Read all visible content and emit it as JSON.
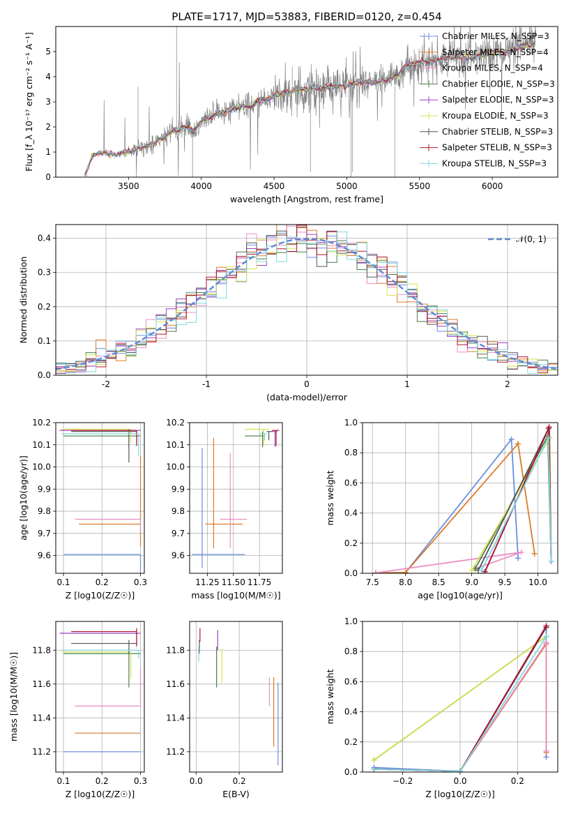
{
  "title": "PLATE=1717, MJD=53883, FIBERID=0120, z=0.454",
  "colors": {
    "Chabrier MILES": "#6a8fdc",
    "Salpeter MILES": "#dc7a2a",
    "Kroupa MILES": "#e98ec6",
    "Chabrier ELODIE": "#4a7a4a",
    "Salpeter ELODIE": "#9b3fc2",
    "Kroupa ELODIE": "#d4e34f",
    "Chabrier STELIB": "#555555",
    "Salpeter STELIB": "#b1132a",
    "Kroupa STELIB": "#7fd6df",
    "normal": "#5f8ad6",
    "data": "#808080"
  },
  "chart_data": [
    {
      "id": "spectrum",
      "type": "line",
      "title": "PLATE=1717, MJD=53883, FIBERID=0120, z=0.454",
      "xlabel": "wavelength [Angstrom, rest frame]",
      "ylabel": "Flux [f_λ 10⁻¹⁷ erg cm⁻² s⁻¹ A⁻¹]",
      "xlim": [
        3000,
        6450
      ],
      "ylim": [
        0,
        6
      ],
      "xticks": [
        3500,
        4000,
        4500,
        5000,
        5500,
        6000
      ],
      "yticks": [
        0,
        1,
        2,
        3,
        4,
        5
      ],
      "legend_position": "upper-right",
      "legend": [
        "Chabrier MILES, N_SSP=3",
        "Salpeter MILES, N_SSP=4",
        "Kroupa MILES, N_SSP=4",
        "Chabrier ELODIE, N_SSP=3",
        "Salpeter ELODIE, N_SSP=3",
        "Kroupa ELODIE, N_SSP=3",
        "Chabrier STELIB, N_SSP=3",
        "Salpeter STELIB, N_SSP=3",
        "Kroupa STELIB, N_SSP=3"
      ],
      "continuum": {
        "x": [
          3200,
          3250,
          3300,
          3350,
          3400,
          3450,
          3500,
          3550,
          3600,
          3650,
          3700,
          3750,
          3800,
          3850,
          3900,
          3950,
          4000,
          4050,
          4100,
          4150,
          4200,
          4250,
          4300,
          4350,
          4400,
          4450,
          4500,
          4550,
          4600,
          4650,
          4700,
          4750,
          4800,
          4850,
          4900,
          4950,
          5000,
          5050,
          5100,
          5150,
          5200,
          5250,
          5300,
          5350,
          5400,
          5450,
          5500,
          5550,
          5600,
          5650,
          5700,
          5750,
          5800,
          5850,
          5900,
          5950,
          6000,
          6050,
          6100,
          6150,
          6200,
          6250,
          6300
        ],
        "y": [
          0.1,
          0.85,
          0.95,
          0.95,
          0.9,
          0.95,
          1.0,
          1.1,
          1.2,
          1.3,
          1.45,
          1.6,
          1.85,
          1.9,
          2.0,
          1.85,
          2.25,
          2.35,
          2.55,
          2.6,
          2.7,
          2.75,
          2.85,
          2.85,
          3.05,
          3.1,
          3.25,
          3.35,
          3.35,
          3.45,
          3.5,
          3.55,
          3.55,
          3.6,
          3.6,
          3.65,
          3.65,
          3.75,
          3.75,
          3.8,
          3.75,
          3.85,
          3.95,
          4.05,
          4.4,
          4.5,
          4.55,
          4.6,
          4.6,
          4.7,
          4.75,
          4.75,
          4.8,
          4.75,
          4.85,
          4.9,
          4.95,
          5.0,
          5.0,
          5.1,
          5.2,
          5.25,
          5.3
        ]
      }
    },
    {
      "id": "residuals",
      "type": "line",
      "xlabel": "(data-model)/error",
      "ylabel": "Normed distribution",
      "xlim": [
        -2.5,
        2.5
      ],
      "ylim": [
        0,
        0.44
      ],
      "xticks": [
        -2,
        -1,
        0,
        1,
        2
      ],
      "yticks": [
        0.0,
        0.1,
        0.2,
        0.3,
        0.4
      ],
      "legend": [
        "𝒩(0, 1)"
      ],
      "legend_position": "upper-right",
      "bin_width": 0.1,
      "series_note": "nine step histograms following the normal curve with scatter"
    },
    {
      "id": "age-vs-Z",
      "type": "scatter",
      "xlabel": "Z [log10(Z/Z☉)]",
      "ylabel": "age  [log10(age/yr)]",
      "xlim": [
        0.08,
        0.31
      ],
      "ylim": [
        9.52,
        10.2
      ],
      "xticks": [
        0.1,
        0.2,
        0.3
      ],
      "yticks": [
        9.6,
        9.7,
        9.8,
        9.9,
        10.0,
        10.1,
        10.2
      ],
      "points": [
        {
          "model": "Chabrier MILES",
          "x": 0.3,
          "y": 9.605,
          "xerr": [
            0.2,
            0.0
          ],
          "yerr": [
            0.08,
            0.0
          ]
        },
        {
          "model": "Salpeter MILES",
          "x": 0.3,
          "y": 9.742,
          "xerr": [
            0.16,
            0.0
          ],
          "yerr": [
            0.1,
            0.31
          ]
        },
        {
          "model": "Kroupa MILES",
          "x": 0.3,
          "y": 9.764,
          "xerr": [
            0.17,
            0.0
          ],
          "yerr": [
            0.05,
            0.0
          ]
        },
        {
          "model": "Chabrier ELODIE",
          "x": 0.27,
          "y": 10.14,
          "xerr": [
            0.17,
            0.03
          ],
          "yerr": [
            0.06,
            0.01
          ]
        },
        {
          "model": "Salpeter ELODIE",
          "x": 0.29,
          "y": 10.165,
          "xerr": [
            0.2,
            0.01
          ],
          "yerr": [
            0.06,
            0.0
          ]
        },
        {
          "model": "Kroupa ELODIE",
          "x": 0.275,
          "y": 10.17,
          "xerr": [
            0.18,
            0.0
          ],
          "yerr": [
            0.06,
            0.0
          ]
        },
        {
          "model": "Chabrier STELIB",
          "x": 0.27,
          "y": 10.16,
          "xerr": [
            0.15,
            0.02
          ],
          "yerr": [
            0.14,
            0.01
          ]
        },
        {
          "model": "Salpeter STELIB",
          "x": 0.29,
          "y": 10.165,
          "xerr": [
            0.17,
            0.0
          ],
          "yerr": [
            0.07,
            0.0
          ]
        },
        {
          "model": "Kroupa STELIB",
          "x": 0.295,
          "y": 10.15,
          "xerr": [
            0.2,
            0.0
          ],
          "yerr": [
            0.1,
            0.0
          ]
        }
      ]
    },
    {
      "id": "age-vs-mass",
      "type": "scatter",
      "xlabel": "mass [log10(M/M☉)]",
      "xlim": [
        11.08,
        11.97
      ],
      "ylim": [
        9.52,
        10.2
      ],
      "xticks": [
        11.25,
        11.5,
        11.75
      ],
      "yticks": [
        9.6,
        9.7,
        9.8,
        9.9,
        10.0,
        10.1,
        10.2
      ],
      "points": [
        {
          "model": "Chabrier MILES",
          "x": 11.2,
          "y": 9.605,
          "xerr": [
            0.1,
            0.41
          ],
          "yerr": [
            0.06,
            0.48
          ]
        },
        {
          "model": "Salpeter MILES",
          "x": 11.31,
          "y": 9.742,
          "xerr": [
            0.08,
            0.28
          ],
          "yerr": [
            0.11,
            0.39
          ]
        },
        {
          "model": "Kroupa MILES",
          "x": 11.47,
          "y": 9.764,
          "xerr": [
            0.1,
            0.16
          ],
          "yerr": [
            0.13,
            0.3
          ]
        },
        {
          "model": "Chabrier ELODIE",
          "x": 11.78,
          "y": 10.14,
          "xerr": [
            0.17,
            0.02
          ],
          "yerr": [
            0.05,
            0.02
          ]
        },
        {
          "model": "Salpeter ELODIE",
          "x": 11.9,
          "y": 10.16,
          "xerr": [
            0.03,
            0.02
          ],
          "yerr": [
            0.07,
            0.0
          ]
        },
        {
          "model": "Kroupa ELODIE",
          "x": 11.79,
          "y": 10.17,
          "xerr": [
            0.18,
            0.05
          ],
          "yerr": [
            0.07,
            0.0
          ]
        },
        {
          "model": "Chabrier STELIB",
          "x": 11.84,
          "y": 10.16,
          "xerr": [
            0.02,
            0.03
          ],
          "yerr": [
            0.04,
            0.0
          ]
        },
        {
          "model": "Salpeter STELIB",
          "x": 11.91,
          "y": 10.165,
          "xerr": [
            0.04,
            0.03
          ],
          "yerr": [
            0.07,
            0.0
          ]
        },
        {
          "model": "Kroupa STELIB",
          "x": 11.8,
          "y": 10.15,
          "xerr": [
            0.05,
            0.02
          ],
          "yerr": [
            0.03,
            0.0
          ]
        }
      ]
    },
    {
      "id": "weight-vs-age",
      "type": "line",
      "xlabel": "age  [log10(age/yr)]",
      "ylabel": "mass weight",
      "xlim": [
        7.35,
        10.3
      ],
      "ylim": [
        0,
        1
      ],
      "xticks": [
        7.5,
        8.0,
        8.5,
        9.0,
        9.5,
        10.0
      ],
      "yticks": [
        0.0,
        0.2,
        0.4,
        0.6,
        0.8,
        1.0
      ],
      "series": [
        {
          "model": "Chabrier MILES",
          "x": [
            7.55,
            8.0,
            9.6,
            9.7
          ],
          "y": [
            0.003,
            0.005,
            0.89,
            0.1
          ]
        },
        {
          "model": "Salpeter MILES",
          "x": [
            7.55,
            8.0,
            9.7,
            9.95
          ],
          "y": [
            0.002,
            0.005,
            0.86,
            0.13
          ]
        },
        {
          "model": "Kroupa MILES",
          "x": [
            7.55,
            9.75,
            9.05
          ],
          "y": [
            0.003,
            0.14,
            0.03
          ]
        },
        {
          "model": "Chabrier ELODIE",
          "x": [
            9.05,
            10.15,
            10.2
          ],
          "y": [
            0.03,
            0.91,
            0.08
          ]
        },
        {
          "model": "Salpeter ELODIE",
          "x": [
            9.2,
            10.17,
            10.2
          ],
          "y": [
            0.01,
            0.97,
            0.08
          ]
        },
        {
          "model": "Kroupa ELODIE",
          "x": [
            9.0,
            10.18,
            10.2
          ],
          "y": [
            0.02,
            0.9,
            0.08
          ]
        },
        {
          "model": "Chabrier STELIB",
          "x": [
            9.1,
            10.16,
            10.2
          ],
          "y": [
            0.02,
            0.96,
            0.08
          ]
        },
        {
          "model": "Salpeter STELIB",
          "x": [
            9.2,
            10.17,
            10.2
          ],
          "y": [
            0.01,
            0.97,
            0.08
          ]
        },
        {
          "model": "Kroupa STELIB",
          "x": [
            9.15,
            10.16,
            10.2
          ],
          "y": [
            0.02,
            0.9,
            0.08
          ]
        }
      ]
    },
    {
      "id": "mass-vs-Z",
      "type": "scatter",
      "xlabel": "Z [log10(Z/Z☉)]",
      "ylabel": "mass [log10(M/M☉)]",
      "xlim": [
        0.08,
        0.31
      ],
      "ylim": [
        11.08,
        11.97
      ],
      "xticks": [
        0.1,
        0.2,
        0.3
      ],
      "yticks": [
        11.2,
        11.4,
        11.6,
        11.8
      ],
      "points": [
        {
          "model": "Chabrier MILES",
          "x": 0.3,
          "y": 11.2,
          "xerr": [
            0.2,
            0.0
          ],
          "yerr": [
            0.0,
            0.0
          ]
        },
        {
          "model": "Salpeter MILES",
          "x": 0.3,
          "y": 11.31,
          "xerr": [
            0.17,
            0.0
          ],
          "yerr": [
            0.0,
            0.0
          ]
        },
        {
          "model": "Kroupa MILES",
          "x": 0.3,
          "y": 11.47,
          "xerr": [
            0.17,
            0.0
          ],
          "yerr": [
            0.0,
            0.23
          ]
        },
        {
          "model": "Chabrier ELODIE",
          "x": 0.27,
          "y": 11.78,
          "xerr": [
            0.17,
            0.03
          ],
          "yerr": [
            0.2,
            0.03
          ]
        },
        {
          "model": "Salpeter ELODIE",
          "x": 0.29,
          "y": 11.9,
          "xerr": [
            0.2,
            0.01
          ],
          "yerr": [
            0.08,
            0.02
          ]
        },
        {
          "model": "Kroupa ELODIE",
          "x": 0.275,
          "y": 11.79,
          "xerr": [
            0.18,
            0.0
          ],
          "yerr": [
            0.16,
            0.0
          ]
        },
        {
          "model": "Chabrier STELIB",
          "x": 0.27,
          "y": 11.84,
          "xerr": [
            0.15,
            0.02
          ],
          "yerr": [
            0.06,
            0.02
          ]
        },
        {
          "model": "Salpeter STELIB",
          "x": 0.29,
          "y": 11.91,
          "xerr": [
            0.17,
            0.0
          ],
          "yerr": [
            0.08,
            0.02
          ]
        },
        {
          "model": "Kroupa STELIB",
          "x": 0.295,
          "y": 11.8,
          "xerr": [
            0.2,
            0.0
          ],
          "yerr": [
            0.05,
            0.0
          ]
        }
      ]
    },
    {
      "id": "mass-vs-ebv",
      "type": "scatter",
      "xlabel": "E(B-V)",
      "xlim": [
        -0.03,
        0.4
      ],
      "ylim": [
        11.08,
        11.97
      ],
      "xticks": [
        0.0,
        0.2
      ],
      "yticks": [
        11.2,
        11.4,
        11.6,
        11.8
      ],
      "points": [
        {
          "model": "Chabrier MILES",
          "x": 0.38,
          "y": 11.2,
          "yerr": [
            0.08,
            0.41
          ]
        },
        {
          "model": "Salpeter MILES",
          "x": 0.36,
          "y": 11.31,
          "yerr": [
            0.08,
            0.33
          ]
        },
        {
          "model": "Kroupa MILES",
          "x": 0.34,
          "y": 11.47,
          "yerr": [
            0.0,
            0.17
          ]
        },
        {
          "model": "Chabrier ELODIE",
          "x": 0.095,
          "y": 11.78,
          "yerr": [
            0.2,
            0.04
          ]
        },
        {
          "model": "Salpeter ELODIE",
          "x": 0.1,
          "y": 11.9,
          "yerr": [
            0.1,
            0.02
          ]
        },
        {
          "model": "Kroupa ELODIE",
          "x": 0.12,
          "y": 11.79,
          "yerr": [
            0.18,
            0.02
          ]
        },
        {
          "model": "Chabrier STELIB",
          "x": 0.015,
          "y": 11.84,
          "yerr": [
            0.06,
            0.02
          ]
        },
        {
          "model": "Salpeter STELIB",
          "x": 0.018,
          "y": 11.91,
          "yerr": [
            0.06,
            0.02
          ]
        },
        {
          "model": "Kroupa STELIB",
          "x": 0.012,
          "y": 11.8,
          "yerr": [
            0.07,
            0.02
          ]
        }
      ]
    },
    {
      "id": "weight-vs-Z",
      "type": "line",
      "xlabel": "Z [log10(Z/Z☉)]",
      "ylabel": "mass weight",
      "xlim": [
        -0.34,
        0.34
      ],
      "ylim": [
        0,
        1
      ],
      "xticks": [
        -0.2,
        0.0,
        0.2
      ],
      "yticks": [
        0.0,
        0.2,
        0.4,
        0.6,
        0.8,
        1.0
      ],
      "series": [
        {
          "model": "Chabrier MILES",
          "x": [
            -0.3,
            0.0,
            0.3,
            0.3
          ],
          "y": [
            0.03,
            0.005,
            0.96,
            0.1
          ]
        },
        {
          "model": "Salpeter MILES",
          "x": [
            -0.3,
            0.0,
            0.3,
            0.3
          ],
          "y": [
            0.02,
            0.005,
            0.85,
            0.13
          ]
        },
        {
          "model": "Kroupa MILES",
          "x": [
            -0.3,
            0.0,
            0.3,
            0.3
          ],
          "y": [
            0.02,
            0.005,
            0.86,
            0.14
          ]
        },
        {
          "model": "Chabrier ELODIE",
          "x": [
            -0.3,
            0.3
          ],
          "y": [
            0.08,
            0.9
          ]
        },
        {
          "model": "Salpeter ELODIE",
          "x": [
            -0.3,
            0.0,
            0.3
          ],
          "y": [
            0.02,
            0.005,
            0.97
          ]
        },
        {
          "model": "Kroupa ELODIE",
          "x": [
            -0.3,
            0.3
          ],
          "y": [
            0.08,
            0.9
          ]
        },
        {
          "model": "Chabrier STELIB",
          "x": [
            -0.3,
            0.0,
            0.3
          ],
          "y": [
            0.02,
            0.005,
            0.96
          ]
        },
        {
          "model": "Salpeter STELIB",
          "x": [
            -0.3,
            0.0,
            0.3
          ],
          "y": [
            0.02,
            0.005,
            0.97
          ]
        },
        {
          "model": "Kroupa STELIB",
          "x": [
            -0.3,
            0.0,
            0.3
          ],
          "y": [
            0.02,
            0.005,
            0.9
          ]
        }
      ]
    }
  ]
}
